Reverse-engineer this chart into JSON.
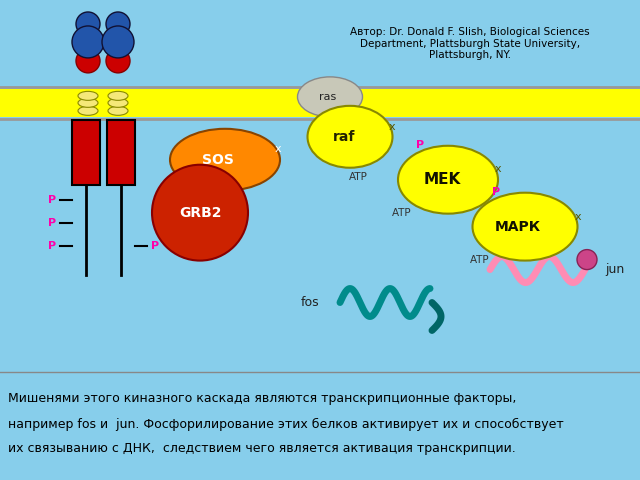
{
  "bg_color": "#87CEEB",
  "yellow_color": "#FFFF00",
  "gray_color": "#999999",
  "author_text": "Автор: Dr. Donald F. Slish, Biological Sciences\nDepartment, Plattsburgh State University,\nPlattsburgh, NY.",
  "bottom_text_line1": "Мишенями этого киназного каскада являются транскрипционные факторы,",
  "bottom_text_line2": "например fos и  jun. Фосфорилирование этих белков активирует их и способствует",
  "bottom_text_line3": "их связыванию с ДНК,  следствием чего является активация транскрипции.",
  "receptor_color": "#cc0000",
  "grb2_color": "#cc2200",
  "sos_color": "#ff8800",
  "ras_color": "#c8c8b8",
  "raf_color": "#ffff00",
  "mek_color": "#ffff00",
  "mapk_color": "#ffff00",
  "fos_color": "#008B8B",
  "jun_color": "#ff8cb4",
  "p_color": "#ff00aa",
  "dark_blue": "#2255aa"
}
